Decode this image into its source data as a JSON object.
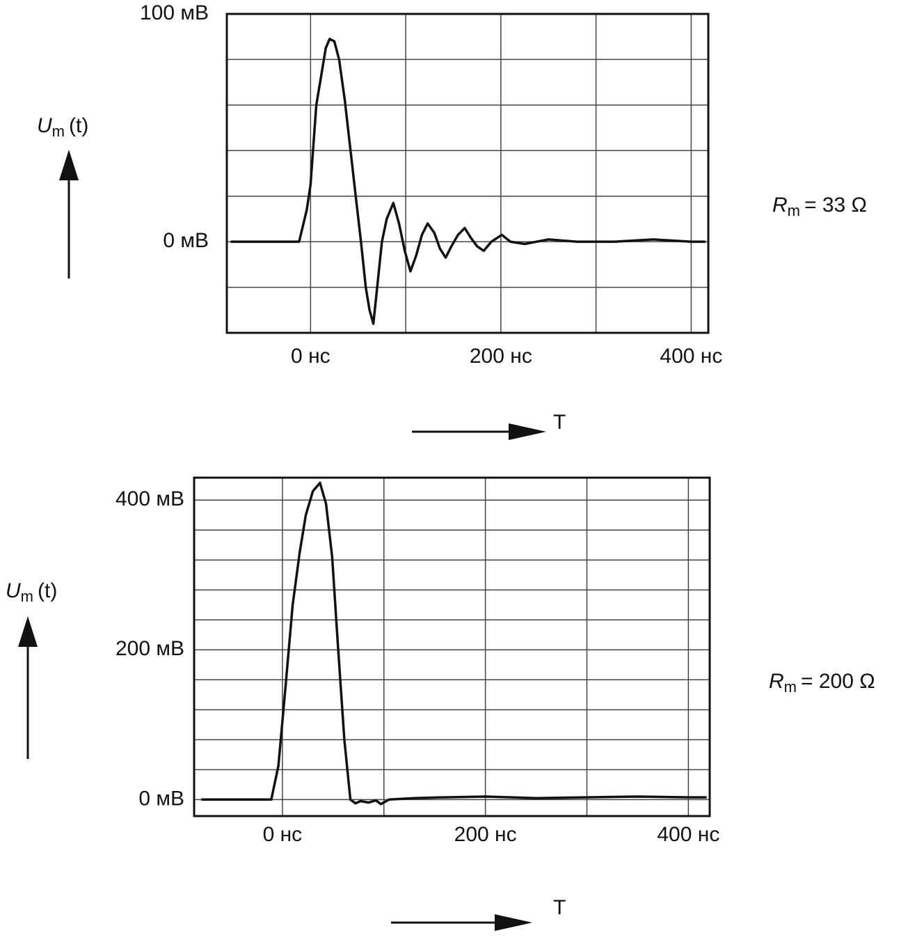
{
  "chart_data": [
    {
      "type": "line",
      "y_label": {
        "symbol": "U",
        "subscript": "m",
        "arg": "(t)"
      },
      "x_label": "T",
      "annotation": {
        "symbol": "R",
        "subscript": "m",
        "text": "= 33 Ω"
      },
      "xlim": [
        -88,
        418
      ],
      "ylim": [
        -40,
        100
      ],
      "xticks": [
        {
          "value": 0,
          "label": "0 нс"
        },
        {
          "value": 200,
          "label": "200 нс"
        },
        {
          "value": 400,
          "label": "400 нс"
        }
      ],
      "yticks": [
        {
          "value": 0,
          "label": "0 мВ"
        },
        {
          "value": 100,
          "label": "100 мВ"
        }
      ],
      "minor_xticks": [
        100,
        300
      ],
      "minor_yticks": [
        -20,
        20,
        40,
        60,
        80
      ],
      "grid": true,
      "x": [
        -84,
        -60,
        -40,
        -20,
        -12,
        -4,
        0,
        6,
        12,
        16,
        20,
        25,
        30,
        36,
        42,
        48,
        53,
        58,
        62,
        66,
        70,
        75,
        80,
        87,
        93,
        99,
        105,
        111,
        117,
        123,
        130,
        136,
        142,
        148,
        155,
        162,
        168,
        175,
        182,
        190,
        201,
        210,
        225,
        250,
        280,
        320,
        360,
        400,
        415
      ],
      "series": [
        {
          "color": "#111111",
          "values": [
            0,
            0,
            0,
            0,
            0,
            14,
            25,
            60,
            75,
            85,
            89,
            88,
            80,
            62,
            40,
            18,
            0,
            -20,
            -30,
            -36,
            -20,
            0,
            10,
            17,
            8,
            -4,
            -13,
            -6,
            3,
            8,
            4,
            -3,
            -7,
            -2,
            3,
            6,
            2,
            -2,
            -4,
            0,
            3,
            0,
            -1,
            1,
            0,
            0,
            1,
            0,
            0
          ]
        }
      ]
    },
    {
      "type": "line",
      "y_label": {
        "symbol": "U",
        "subscript": "m",
        "arg": "(t)"
      },
      "x_label": "T",
      "annotation": {
        "symbol": "R",
        "subscript": "m",
        "text": "= 200 Ω"
      },
      "xlim": [
        -87,
        421
      ],
      "ylim": [
        -22,
        430
      ],
      "xticks": [
        {
          "value": 0,
          "label": "0 нс"
        },
        {
          "value": 200,
          "label": "200 нс"
        },
        {
          "value": 400,
          "label": "400 нс"
        }
      ],
      "yticks": [
        {
          "value": 0,
          "label": "0 мВ"
        },
        {
          "value": 200,
          "label": "200 мВ"
        },
        {
          "value": 400,
          "label": "400 мВ"
        }
      ],
      "minor_xticks": [
        100,
        300
      ],
      "minor_yticks": [
        40,
        80,
        120,
        160,
        240,
        280,
        320,
        360
      ],
      "grid": true,
      "x": [
        -80,
        -50,
        -20,
        -11,
        -4,
        3,
        10,
        17,
        23,
        30,
        37,
        43,
        49,
        55,
        61,
        67,
        72,
        77,
        85,
        92,
        97,
        105,
        130,
        160,
        200,
        250,
        300,
        350,
        400,
        418
      ],
      "series": [
        {
          "color": "#111111",
          "values": [
            0,
            0,
            0,
            0,
            45,
            150,
            259,
            330,
            380,
            412,
            423,
            395,
            324,
            200,
            80,
            0,
            -5,
            -2,
            -4,
            -1,
            -6,
            0,
            2,
            3,
            4,
            2,
            3,
            4,
            3,
            3
          ]
        }
      ]
    }
  ]
}
